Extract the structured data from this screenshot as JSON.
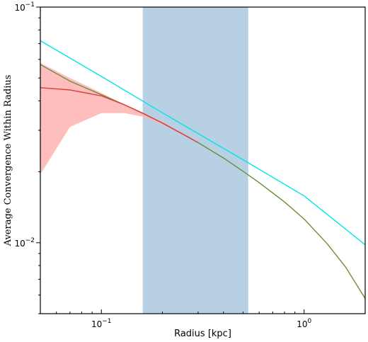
{
  "chart_data": {
    "type": "line",
    "title": "",
    "xlabel": "Radius [kpc]",
    "ylabel": "Average Convergence Within Radius",
    "xscale": "log",
    "yscale": "log",
    "xlim": [
      0.05,
      2.0
    ],
    "ylim": [
      0.005,
      0.1
    ],
    "grid": false,
    "x_ticks": [
      {
        "value": 0.1,
        "base": "10",
        "exp": "−1"
      },
      {
        "value": 1.0,
        "base": "10",
        "exp": "0"
      }
    ],
    "y_ticks": [
      {
        "value": 0.01,
        "base": "10",
        "exp": "−2"
      },
      {
        "value": 0.1,
        "base": "10",
        "exp": "−1"
      }
    ],
    "shaded_region": {
      "x_from": 0.16,
      "x_to": 0.53,
      "color": "#b7d0e3"
    },
    "uncertainty_band": {
      "color": "#ffb3b3",
      "x": [
        0.05,
        0.07,
        0.1,
        0.13,
        0.16,
        0.2,
        0.25,
        0.3
      ],
      "lower": [
        0.0195,
        0.031,
        0.0355,
        0.0355,
        0.0343,
        0.0318,
        0.0288,
        0.0265
      ],
      "upper": [
        0.058,
        0.05,
        0.0432,
        0.0385,
        0.0354,
        0.0326,
        0.0292,
        0.0268
      ]
    },
    "series": [
      {
        "color": "#00e5e5",
        "x": [
          0.05,
          0.1,
          0.2,
          0.5,
          1.0,
          2.0
        ],
        "y": [
          0.072,
          0.0508,
          0.0356,
          0.0225,
          0.0158,
          0.0098
        ]
      },
      {
        "color": "#6b8e3a",
        "x": [
          0.05,
          0.07,
          0.1,
          0.13,
          0.16,
          0.2,
          0.25,
          0.3,
          0.4,
          0.5,
          0.6,
          0.8,
          1.0,
          1.3,
          1.6,
          2.0
        ],
        "y": [
          0.057,
          0.0485,
          0.0425,
          0.0385,
          0.0355,
          0.0322,
          0.029,
          0.0266,
          0.0229,
          0.0201,
          0.018,
          0.0149,
          0.0126,
          0.0099,
          0.0079,
          0.0058
        ]
      },
      {
        "color": "#d94040",
        "x": [
          0.05,
          0.07,
          0.1,
          0.13,
          0.16,
          0.2,
          0.25,
          0.3
        ],
        "y": [
          0.0455,
          0.0445,
          0.042,
          0.0385,
          0.0354,
          0.0322,
          0.029,
          0.0266
        ]
      }
    ]
  }
}
